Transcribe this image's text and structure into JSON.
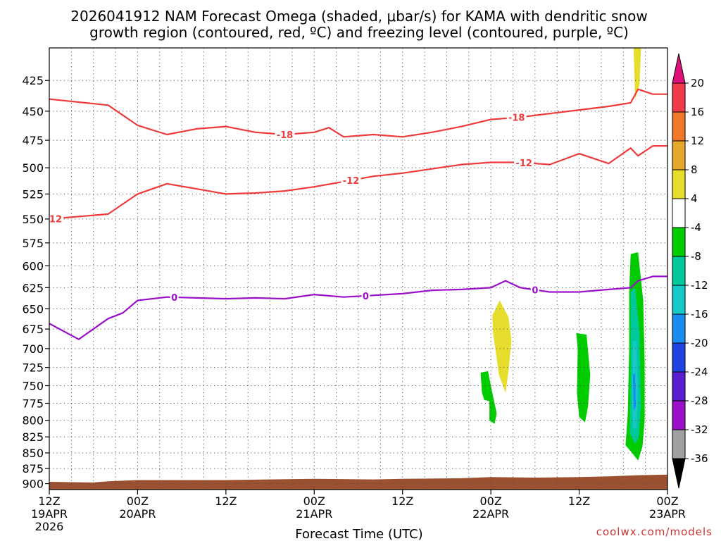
{
  "chart_data": {
    "type": "time-height cross-section",
    "title_line1": "2026041912 NAM Forecast Omega (shaded, μbar/s) for KAMA with dendritic snow",
    "title_line2": "growth region (contoured, red, ºC) and freezing level (contoured, purple, ºC)",
    "xlabel": "Forecast Time (UTC)",
    "credit": "coolwx.com/models",
    "x_range_hours": [
      0,
      84
    ],
    "x_ticks": [
      {
        "hour": 0,
        "label": "12Z",
        "date": "19APR",
        "year": "2026"
      },
      {
        "hour": 12,
        "label": "00Z",
        "date": "20APR",
        "year": ""
      },
      {
        "hour": 24,
        "label": "12Z",
        "date": "",
        "year": ""
      },
      {
        "hour": 36,
        "label": "00Z",
        "date": "21APR",
        "year": ""
      },
      {
        "hour": 48,
        "label": "12Z",
        "date": "",
        "year": ""
      },
      {
        "hour": 60,
        "label": "00Z",
        "date": "22APR",
        "year": ""
      },
      {
        "hour": 72,
        "label": "12Z",
        "date": "",
        "year": ""
      },
      {
        "hour": 84,
        "label": "00Z",
        "date": "23APR",
        "year": ""
      }
    ],
    "y_axis": "pressure (mb)",
    "y_range_mb": [
      400,
      910
    ],
    "y_ticks": [
      425,
      450,
      475,
      500,
      525,
      550,
      575,
      600,
      625,
      650,
      675,
      700,
      725,
      750,
      775,
      800,
      825,
      850,
      875,
      900
    ],
    "colorbar": {
      "ticks": [
        "20",
        "16",
        "12",
        "8",
        "4",
        "-4",
        "-8",
        "-12",
        "-16",
        "-20",
        "-24",
        "-28",
        "-32",
        "-36"
      ],
      "colors": [
        "#f03b4a",
        "#f0782a",
        "#e6a82c",
        "#e6dd2c",
        "#ffffff",
        "#00cc00",
        "#00c89a",
        "#17c8c8",
        "#1a8cf0",
        "#2044e0",
        "#5a1ed0",
        "#9a10c8",
        "#a0a0a0"
      ],
      "top_arrow_color": "#e0107a",
      "bottom_arrow_color": "#000000"
    },
    "contours": [
      {
        "name": "minus18-contour",
        "value": -18,
        "label": "-18",
        "color": "#ee3a3a",
        "label_hours": [
          32,
          63.5
        ],
        "points": [
          [
            0,
            440
          ],
          [
            8,
            445
          ],
          [
            12,
            462
          ],
          [
            16,
            470
          ],
          [
            20,
            465
          ],
          [
            24,
            463
          ],
          [
            28,
            468
          ],
          [
            32,
            470
          ],
          [
            36,
            468
          ],
          [
            38,
            464
          ],
          [
            40,
            472
          ],
          [
            44,
            470
          ],
          [
            48,
            472
          ],
          [
            52,
            468
          ],
          [
            56,
            463
          ],
          [
            60,
            457
          ],
          [
            64,
            455
          ],
          [
            68,
            452
          ],
          [
            72,
            449
          ],
          [
            76,
            446
          ],
          [
            79,
            443
          ],
          [
            80,
            432
          ],
          [
            82,
            436
          ],
          [
            84,
            436
          ]
        ]
      },
      {
        "name": "minus12-contour",
        "value": -12,
        "label": "-12",
        "color": "#ee3a3a",
        "label_hours": [
          0.6,
          41,
          64.5
        ],
        "points": [
          [
            0,
            550
          ],
          [
            8,
            545
          ],
          [
            12,
            525
          ],
          [
            16,
            515
          ],
          [
            20,
            520
          ],
          [
            24,
            525
          ],
          [
            28,
            524
          ],
          [
            32,
            522
          ],
          [
            36,
            518
          ],
          [
            40,
            513
          ],
          [
            44,
            508
          ],
          [
            48,
            505
          ],
          [
            52,
            501
          ],
          [
            56,
            497
          ],
          [
            60,
            495
          ],
          [
            64,
            495
          ],
          [
            68,
            497
          ],
          [
            72,
            487
          ],
          [
            76,
            496
          ],
          [
            79,
            482
          ],
          [
            80,
            489
          ],
          [
            82,
            480
          ],
          [
            84,
            480
          ]
        ]
      },
      {
        "name": "zero-contour",
        "value": 0,
        "label": "0",
        "color": "#9a10c8",
        "label_hours": [
          17,
          43,
          66
        ],
        "points": [
          [
            0,
            668
          ],
          [
            4,
            688
          ],
          [
            8,
            662
          ],
          [
            10,
            655
          ],
          [
            12,
            640
          ],
          [
            16,
            636
          ],
          [
            20,
            637
          ],
          [
            24,
            638
          ],
          [
            28,
            637
          ],
          [
            32,
            638
          ],
          [
            36,
            633
          ],
          [
            40,
            636
          ],
          [
            44,
            634
          ],
          [
            48,
            632
          ],
          [
            52,
            628
          ],
          [
            56,
            627
          ],
          [
            60,
            625
          ],
          [
            61,
            621
          ],
          [
            62,
            617
          ],
          [
            64,
            625
          ],
          [
            68,
            630
          ],
          [
            72,
            630
          ],
          [
            76,
            627
          ],
          [
            79,
            625
          ],
          [
            80,
            617
          ],
          [
            82,
            612
          ],
          [
            84,
            612
          ]
        ]
      }
    ],
    "shaded_regions": [
      {
        "name": "omega-plus4-aloft",
        "value_range": "4 to 8",
        "color": "#e6dd2c",
        "points": [
          [
            79.4,
            400
          ],
          [
            80.4,
            400
          ],
          [
            80.2,
            428
          ],
          [
            79.6,
            440
          ],
          [
            79.5,
            420
          ]
        ]
      },
      {
        "name": "omega-plus4-mid",
        "value_range": "4 to 8",
        "color": "#e6dd2c",
        "points": [
          [
            60.2,
            658
          ],
          [
            61.2,
            640
          ],
          [
            62.4,
            660
          ],
          [
            62.8,
            690
          ],
          [
            62.4,
            730
          ],
          [
            62.0,
            760
          ],
          [
            61.1,
            735
          ],
          [
            60.6,
            700
          ],
          [
            60.3,
            680
          ]
        ]
      },
      {
        "name": "omega-minus4-a",
        "value_range": "-4 to -8",
        "color": "#00cc00",
        "points": [
          [
            58.6,
            732
          ],
          [
            59.6,
            730
          ],
          [
            60.2,
            760
          ],
          [
            60.8,
            790
          ],
          [
            60.5,
            805
          ],
          [
            59.8,
            800
          ],
          [
            59.8,
            772
          ],
          [
            59.1,
            770
          ],
          [
            58.8,
            760
          ]
        ]
      },
      {
        "name": "omega-minus4-b",
        "value_range": "-4 to -8",
        "color": "#00cc00",
        "points": [
          [
            71.6,
            680
          ],
          [
            73.0,
            682
          ],
          [
            73.5,
            735
          ],
          [
            73.2,
            780
          ],
          [
            72.8,
            803
          ],
          [
            72.0,
            795
          ],
          [
            71.7,
            760
          ],
          [
            71.8,
            700
          ]
        ]
      },
      {
        "name": "omega-minus4-c",
        "value_range": "-4 to -8",
        "color": "#00cc00",
        "points": [
          [
            79.0,
            587
          ],
          [
            80.0,
            585
          ],
          [
            80.7,
            640
          ],
          [
            80.9,
            720
          ],
          [
            80.9,
            800
          ],
          [
            80.6,
            840
          ],
          [
            80.0,
            862
          ],
          [
            79.2,
            850
          ],
          [
            78.3,
            838
          ],
          [
            78.6,
            790
          ],
          [
            78.8,
            700
          ],
          [
            78.8,
            630
          ]
        ]
      },
      {
        "name": "omega-minus8-c",
        "value_range": "-8 to -12",
        "color": "#00c89a",
        "points": [
          [
            79.0,
            630
          ],
          [
            79.6,
            625
          ],
          [
            80.2,
            680
          ],
          [
            80.4,
            780
          ],
          [
            80.1,
            826
          ],
          [
            79.6,
            836
          ],
          [
            78.9,
            820
          ],
          [
            79.0,
            720
          ]
        ]
      },
      {
        "name": "omega-minus12-c",
        "value_range": "-12 to -16",
        "color": "#17c8c8",
        "points": [
          [
            79.3,
            690
          ],
          [
            79.8,
            690
          ],
          [
            80.0,
            760
          ],
          [
            79.8,
            812
          ],
          [
            79.3,
            812
          ],
          [
            79.2,
            760
          ]
        ]
      },
      {
        "name": "omega-minus16-c",
        "value_range": "-16 to -20",
        "color": "#1a8cf0",
        "points": [
          [
            79.3,
            735
          ],
          [
            79.6,
            733
          ],
          [
            79.7,
            780
          ],
          [
            79.4,
            785
          ]
        ]
      }
    ],
    "terrain": {
      "color": "#9b5030",
      "points": [
        [
          0,
          897
        ],
        [
          6,
          898
        ],
        [
          8,
          896
        ],
        [
          12,
          894
        ],
        [
          24,
          894
        ],
        [
          36,
          892
        ],
        [
          44,
          893
        ],
        [
          48,
          892
        ],
        [
          56,
          891
        ],
        [
          60,
          889
        ],
        [
          66,
          890
        ],
        [
          72,
          889
        ],
        [
          76,
          888
        ],
        [
          80,
          886
        ],
        [
          84,
          885
        ]
      ]
    }
  }
}
